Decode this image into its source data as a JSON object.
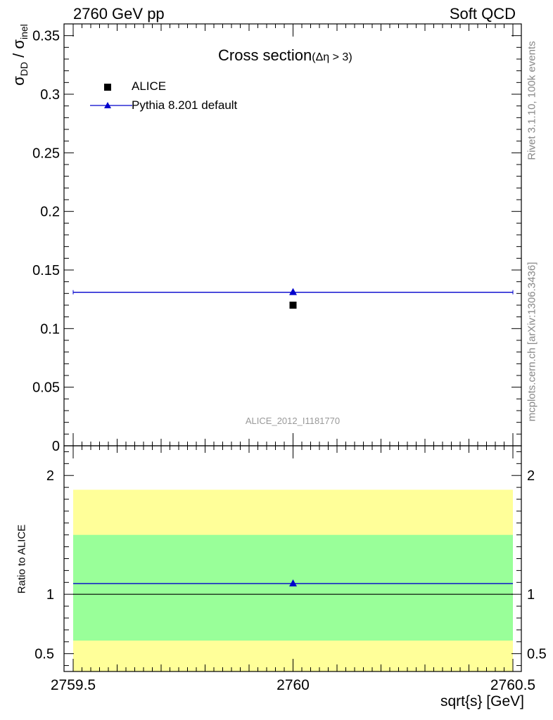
{
  "header": {
    "left": "2760 GeV pp",
    "right": "Soft QCD"
  },
  "side_text": {
    "rivet": "Rivet 3.1.10,  100k events",
    "mcplots": "mcplots.cern.ch [arXiv:1306.3436]"
  },
  "chart_data": [
    {
      "type": "scatter",
      "title_main": "Cross section",
      "title_sub": "(Δη > 3)",
      "ylabel_sigma": "σ",
      "ylabel_num_sub": "DD",
      "ylabel_slash": " / σ",
      "ylabel_den_sub": "inel",
      "analysis_id": "ALICE_2012_I1181770",
      "xlim": [
        2759.5,
        2760.5
      ],
      "ylim": [
        0,
        0.36
      ],
      "yticks": [
        0,
        0.05,
        0.1,
        0.15,
        0.2,
        0.25,
        0.3,
        0.35
      ],
      "ytick_labels": [
        "0",
        "0.05",
        "0.1",
        "0.15",
        "0.2",
        "0.25",
        "0.3",
        "0.35"
      ],
      "legend_position": "top-left",
      "series": [
        {
          "name": "ALICE",
          "marker": "square",
          "color": "#000000",
          "x": [
            2760
          ],
          "y": [
            0.12
          ]
        },
        {
          "name": "Pythia 8.201 default",
          "marker": "triangle",
          "color": "#0000cc",
          "x": [
            2760
          ],
          "y": [
            0.131
          ],
          "xerr_range": [
            2759.5,
            2760.5
          ]
        }
      ]
    },
    {
      "type": "line",
      "ylabel": "Ratio to ALICE",
      "xlabel": "sqrt{s} [GeV]",
      "xlim": [
        2759.5,
        2760.5
      ],
      "ylim": [
        0.35,
        2.25
      ],
      "xticks": [
        2759.5,
        2760,
        2760.5
      ],
      "xtick_labels": [
        "2759.5",
        "2760",
        "2760.5"
      ],
      "yticks": [
        0.5,
        1,
        2
      ],
      "ytick_labels": [
        "0.5",
        "1",
        "2"
      ],
      "bands": [
        {
          "name": "outer",
          "color": "#ffff99",
          "y": [
            0.35,
            1.88
          ]
        },
        {
          "name": "inner",
          "color": "#99ff99",
          "y": [
            0.61,
            1.5
          ]
        }
      ],
      "reference": {
        "y": 1,
        "color": "#000000"
      },
      "series": [
        {
          "name": "Pythia 8.201 default",
          "color": "#0000cc",
          "x": [
            2760
          ],
          "y": [
            1.09
          ],
          "xerr_range": [
            2759.5,
            2760.5
          ]
        }
      ]
    }
  ]
}
